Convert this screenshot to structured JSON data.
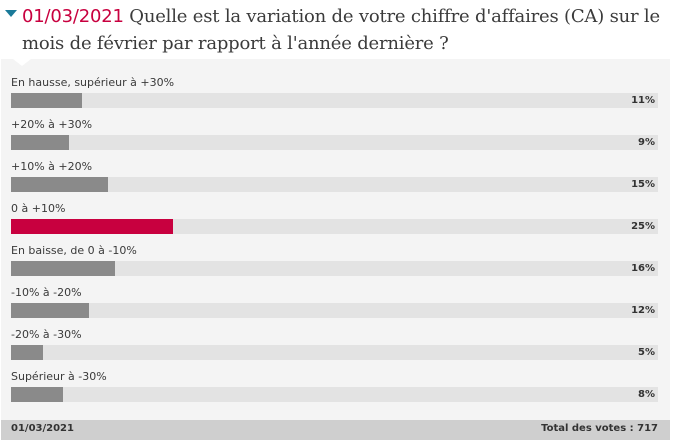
{
  "poll": {
    "date": "01/03/2021",
    "question": "Quelle est la variation de votre chiffre d'affaires (CA) sur le mois de février par rapport à l'année dernière ?",
    "colors": {
      "accent": "#c8003f",
      "bar": "#8a8a8a",
      "track": "#e3e3e3",
      "toggle": "#1a7a99"
    },
    "options": [
      {
        "label": "En hausse, supérieur à +30%",
        "percent": 11,
        "percent_label": "11%",
        "highlight": false
      },
      {
        "label": "+20% à +30%",
        "percent": 9,
        "percent_label": "9%",
        "highlight": false
      },
      {
        "label": "+10% à +20%",
        "percent": 15,
        "percent_label": "15%",
        "highlight": false
      },
      {
        "label": "0 à +10%",
        "percent": 25,
        "percent_label": "25%",
        "highlight": true
      },
      {
        "label": "En baisse, de 0 à -10%",
        "percent": 16,
        "percent_label": "16%",
        "highlight": false
      },
      {
        "label": "-10% à -20%",
        "percent": 12,
        "percent_label": "12%",
        "highlight": false
      },
      {
        "label": "-20% à -30%",
        "percent": 5,
        "percent_label": "5%",
        "highlight": false
      },
      {
        "label": "Supérieur à -30%",
        "percent": 8,
        "percent_label": "8%",
        "highlight": false
      }
    ],
    "footer": {
      "date": "01/03/2021",
      "total_label": "Total des votes : 717",
      "total_votes": 717
    }
  },
  "icons": {
    "toggle": "triangle-down-icon"
  }
}
